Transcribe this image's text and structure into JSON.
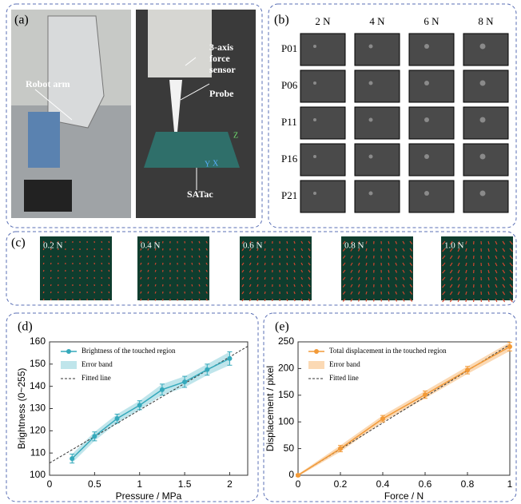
{
  "panels": {
    "a": {
      "label": "(a)",
      "robot_arm": "Robot arm",
      "sensor": [
        "3-axis",
        "force",
        "sensor"
      ],
      "probe": "Probe",
      "satac": "SATac",
      "axes": [
        "X",
        "Y",
        "Z"
      ]
    },
    "b": {
      "label": "(b)",
      "columns": [
        "2 N",
        "4 N",
        "6 N",
        "8 N"
      ],
      "rows": [
        "P01",
        "P06",
        "P11",
        "P16",
        "P21"
      ]
    },
    "c": {
      "label": "(c)",
      "frames": [
        "0.2 N",
        "0.4 N",
        "0.6 N",
        "0.8 N",
        "1.0 N"
      ]
    },
    "d": {
      "label": "(d)"
    },
    "e": {
      "label": "(e)"
    }
  },
  "chart_data": [
    {
      "type": "line",
      "xlabel": "Pressure / MPa",
      "ylabel": "Brightness (0~255)",
      "x": [
        0.25,
        0.5,
        0.75,
        1,
        1.25,
        1.5,
        1.75,
        2
      ],
      "series": [
        {
          "name": "Brightness of the touched region",
          "color": "#35a9bb",
          "values": [
            107.5,
            117.5,
            125.5,
            131.5,
            138.5,
            142,
            147.5,
            152.5
          ],
          "errors": [
            2,
            2,
            2,
            2,
            2.5,
            2.5,
            2.5,
            3
          ]
        }
      ],
      "band": {
        "name": "Error band",
        "color": "#bfe5eb"
      },
      "fit": {
        "name": "Fitted line",
        "x": [
          0,
          2.2
        ],
        "values": [
          105.5,
          158
        ]
      },
      "xlim": [
        0,
        2.2
      ],
      "ylim": [
        100,
        160
      ],
      "xticks": [
        0,
        0.5,
        1,
        1.5,
        2
      ],
      "yticks": [
        100,
        110,
        120,
        130,
        140,
        150,
        160
      ]
    },
    {
      "type": "line",
      "xlabel": "Force / N",
      "ylabel": "Displacement / pixel",
      "x": [
        0,
        0.2,
        0.4,
        0.6,
        0.8,
        1
      ],
      "series": [
        {
          "name": "Total displacement in the touched region",
          "color": "#f29a38",
          "values": [
            0,
            50,
            106,
            151,
            197,
            241
          ],
          "errors": [
            2,
            6,
            6,
            7,
            7,
            8
          ]
        }
      ],
      "band": {
        "name": "Error band",
        "color": "#fbd9b4"
      },
      "fit": {
        "name": "Fitted line",
        "x": [
          0,
          1
        ],
        "values": [
          0,
          245
        ]
      },
      "xlim": [
        0,
        1
      ],
      "ylim": [
        0,
        250
      ],
      "xticks": [
        0,
        0.2,
        0.4,
        0.6,
        0.8,
        1
      ],
      "yticks": [
        0,
        50,
        100,
        150,
        200,
        250
      ]
    }
  ]
}
